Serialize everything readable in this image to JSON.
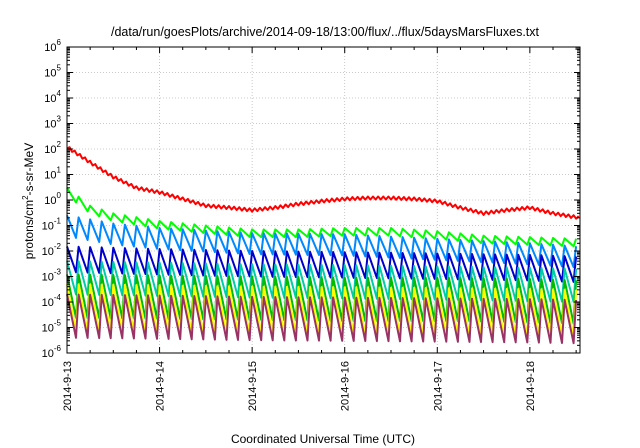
{
  "chart_data": {
    "type": "line",
    "title": "/data/run/goesPlots/archive/2014-09-18/13:00/flux/../flux/5daysMarsFluxes.txt",
    "xlabel": "Coordinated Universal Time (UTC)",
    "ylabel_parts": [
      "protons/cm",
      "2",
      "-s-sr-MeV"
    ],
    "yscale": "log",
    "ylim": [
      1e-06,
      1000000.0
    ],
    "xlim": [
      "2014-09-13 00:00",
      "2014-09-18 13:00"
    ],
    "x_ticks": [
      "2014-9-13",
      "2014-9-14",
      "2014-9-15",
      "2014-9-16",
      "2014-9-17",
      "2014-9-18"
    ],
    "y_ticks": [
      {
        "base": "10",
        "exp": "-6"
      },
      {
        "base": "10",
        "exp": "-5"
      },
      {
        "base": "10",
        "exp": "-4"
      },
      {
        "base": "10",
        "exp": "-3"
      },
      {
        "base": "10",
        "exp": "-2"
      },
      {
        "base": "10",
        "exp": "-1"
      },
      {
        "base": "10",
        "exp": "0"
      },
      {
        "base": "10",
        "exp": "1"
      },
      {
        "base": "10",
        "exp": "2"
      },
      {
        "base": "10",
        "exp": "3"
      },
      {
        "base": "10",
        "exp": "4"
      },
      {
        "base": "10",
        "exp": "5"
      },
      {
        "base": "10",
        "exp": "6"
      }
    ],
    "grid": true,
    "sawtooth_period_hours": 3,
    "series": [
      {
        "color": "#ff0000",
        "style": "smooth",
        "x": [
          "2014-09-13 00:00",
          "2014-09-13 06:00",
          "2014-09-13 12:00",
          "2014-09-13 18:00",
          "2014-09-14 00:00",
          "2014-09-14 06:00",
          "2014-09-14 12:00",
          "2014-09-14 18:00",
          "2014-09-15 00:00",
          "2014-09-15 06:00",
          "2014-09-15 12:00",
          "2014-09-15 18:00",
          "2014-09-16 00:00",
          "2014-09-16 06:00",
          "2014-09-16 12:00",
          "2014-09-16 18:00",
          "2014-09-17 00:00",
          "2014-09-17 06:00",
          "2014-09-17 12:00",
          "2014-09-17 18:00",
          "2014-09-18 00:00",
          "2014-09-18 06:00",
          "2014-09-18 13:00"
        ],
        "values": [
          120,
          30,
          8,
          3,
          2,
          1.1,
          0.6,
          0.5,
          0.4,
          0.5,
          0.7,
          0.9,
          1.1,
          1.2,
          1.2,
          1.1,
          0.9,
          0.5,
          0.3,
          0.4,
          0.5,
          0.3,
          0.2
        ],
        "ripple": 0.12
      },
      {
        "color": "#00ff00",
        "style": "sawtooth",
        "x": [
          "2014-09-13 00:00",
          "2014-09-13 06:00",
          "2014-09-13 12:00",
          "2014-09-14 00:00",
          "2014-09-14 12:00",
          "2014-09-15 00:00",
          "2014-09-15 12:00",
          "2014-09-16 00:00",
          "2014-09-16 12:00",
          "2014-09-17 00:00",
          "2014-09-17 12:00",
          "2014-09-18 00:00",
          "2014-09-18 13:00"
        ],
        "values": [
          3,
          0.6,
          0.3,
          0.15,
          0.1,
          0.07,
          0.07,
          0.08,
          0.08,
          0.06,
          0.04,
          0.035,
          0.03
        ],
        "dip": 0.5
      },
      {
        "color": "#0088ff",
        "style": "sawtooth",
        "x": [
          "2014-09-13 00:00",
          "2014-09-13 12:00",
          "2014-09-14 00:00",
          "2014-09-15 00:00",
          "2014-09-16 00:00",
          "2014-09-17 00:00",
          "2014-09-18 00:00",
          "2014-09-18 13:00"
        ],
        "values": [
          0.25,
          0.12,
          0.08,
          0.05,
          0.045,
          0.03,
          0.02,
          0.015
        ],
        "dip": 0.15
      },
      {
        "color": "#0000cc",
        "style": "sawtooth",
        "x": [
          "2014-09-13 00:00",
          "2014-09-14 00:00",
          "2014-09-15 00:00",
          "2014-09-16 00:00",
          "2014-09-17 00:00",
          "2014-09-18 00:00",
          "2014-09-18 13:00"
        ],
        "values": [
          0.015,
          0.012,
          0.01,
          0.009,
          0.008,
          0.007,
          0.006
        ],
        "dip": 0.1
      },
      {
        "color": "#00ccaa",
        "style": "sawtooth",
        "x": [
          "2014-09-13 00:00",
          "2014-09-14 00:00",
          "2014-09-15 00:00",
          "2014-09-16 00:00",
          "2014-09-17 00:00",
          "2014-09-18 00:00",
          "2014-09-18 13:00"
        ],
        "values": [
          0.004,
          0.0035,
          0.003,
          0.0028,
          0.0025,
          0.0022,
          0.002
        ],
        "dip": 0.05
      },
      {
        "color": "#00bb00",
        "style": "sawtooth",
        "x": [
          "2014-09-13 00:00",
          "2014-09-14 00:00",
          "2014-09-15 00:00",
          "2014-09-16 00:00",
          "2014-09-17 00:00",
          "2014-09-18 00:00",
          "2014-09-18 13:00"
        ],
        "values": [
          0.0012,
          0.0011,
          0.001,
          0.0009,
          0.0009,
          0.0008,
          0.0007
        ],
        "dip": 0.02
      },
      {
        "color": "#ffff00",
        "style": "sawtooth",
        "x": [
          "2014-09-13 00:00",
          "2014-09-14 00:00",
          "2014-09-15 00:00",
          "2014-09-16 00:00",
          "2014-09-17 00:00",
          "2014-09-18 00:00",
          "2014-09-18 13:00"
        ],
        "values": [
          0.0005,
          0.00045,
          0.0004,
          0.00038,
          0.00035,
          0.00032,
          0.0003
        ],
        "dip": 0.015
      },
      {
        "color": "#993366",
        "style": "sawtooth",
        "x": [
          "2014-09-13 00:00",
          "2014-09-14 00:00",
          "2014-09-15 00:00",
          "2014-09-16 00:00",
          "2014-09-17 00:00",
          "2014-09-18 00:00",
          "2014-09-18 13:00"
        ],
        "values": [
          0.0002,
          0.00018,
          0.00016,
          0.00015,
          0.00014,
          0.00013,
          0.00012
        ],
        "dip": 0.02
      }
    ]
  }
}
